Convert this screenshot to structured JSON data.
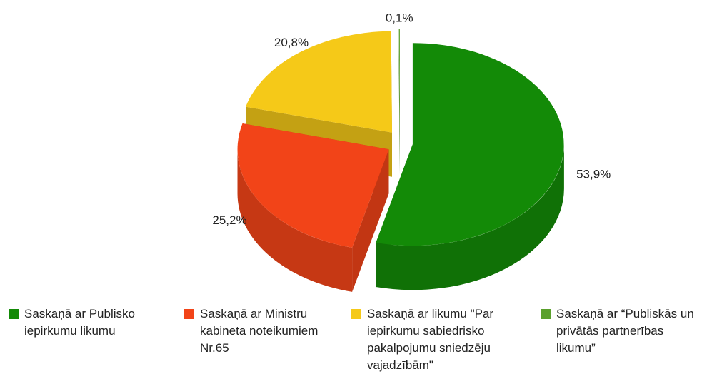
{
  "chart_data": {
    "type": "pie",
    "categories": [
      "Saskaņā ar Publisko iepirkumu likumu",
      "Saskaņā ar Ministru kabineta noteikumiem Nr.65",
      "Saskaņā ar likumu \"Par iepirkumu sabiedrisko pakalpojumu sniedzēju vajadzībām\"",
      "Saskaņā ar “Publiskās un privātās partnerības likumu”"
    ],
    "values": [
      53.9,
      25.2,
      20.8,
      0.1
    ],
    "value_labels": [
      "53,9%",
      "25,2%",
      "20,8%",
      "0,1%"
    ],
    "colors": [
      "#138a07",
      "#f24418",
      "#f5c918",
      "#5aa02c"
    ],
    "legend": "bottom"
  }
}
